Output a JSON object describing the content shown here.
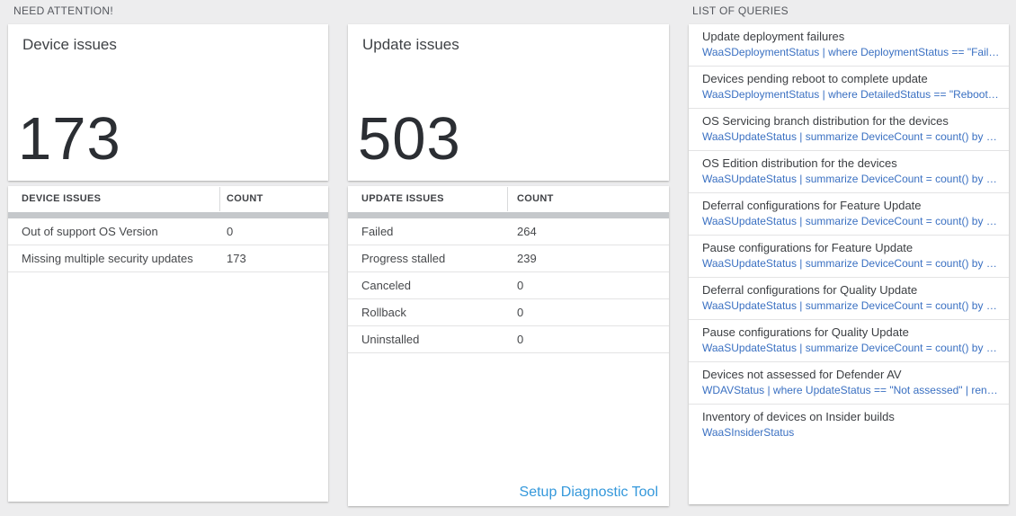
{
  "page": {
    "section_need_attention": "NEED ATTENTION!",
    "section_list_of_queries": "LIST OF QUERIES"
  },
  "device_issues": {
    "card_title": "Device issues",
    "total": "173",
    "table": {
      "col_issue": "DEVICE ISSUES",
      "col_count": "COUNT",
      "rows": [
        {
          "label": "Out of support OS Version",
          "count": "0"
        },
        {
          "label": "Missing multiple security updates",
          "count": "173"
        }
      ]
    }
  },
  "update_issues": {
    "card_title": "Update issues",
    "total": "503",
    "table": {
      "col_issue": "UPDATE ISSUES",
      "col_count": "COUNT",
      "rows": [
        {
          "label": "Failed",
          "count": "264"
        },
        {
          "label": "Progress stalled",
          "count": "239"
        },
        {
          "label": "Canceled",
          "count": "0"
        },
        {
          "label": "Rollback",
          "count": "0"
        },
        {
          "label": "Uninstalled",
          "count": "0"
        }
      ]
    },
    "setup_link": "Setup Diagnostic Tool"
  },
  "queries": {
    "items": [
      {
        "title": "Update deployment failures",
        "query": "WaaSDeploymentStatus | where DeploymentStatus == \"Failed\" |..."
      },
      {
        "title": "Devices pending reboot to complete update",
        "query": "WaaSDeploymentStatus | where DetailedStatus == \"Reboot pend..."
      },
      {
        "title": "OS Servicing branch distribution for the devices",
        "query": "WaaSUpdateStatus | summarize DeviceCount = count() by OSSer..."
      },
      {
        "title": "OS Edition distribution for the devices",
        "query": "WaaSUpdateStatus | summarize DeviceCount = count() by OSEdit..."
      },
      {
        "title": "Deferral configurations for Feature Update",
        "query": "WaaSUpdateStatus | summarize DeviceCount = count() by Featur..."
      },
      {
        "title": "Pause configurations for Feature Update",
        "query": "WaaSUpdateStatus | summarize DeviceCount = count() by Featur..."
      },
      {
        "title": "Deferral configurations for Quality Update",
        "query": "WaaSUpdateStatus | summarize DeviceCount = count() by Qualit..."
      },
      {
        "title": "Pause configurations for Quality Update",
        "query": "WaaSUpdateStatus | summarize DeviceCount = count() by Qualit..."
      },
      {
        "title": "Devices not assessed for Defender AV",
        "query": "WDAVStatus | where UpdateStatus == \"Not assessed\" | render ta..."
      },
      {
        "title": "Inventory of devices on Insider builds",
        "query": "WaaSInsiderStatus"
      }
    ]
  },
  "colors": {
    "page_background": "#ededee",
    "card_background": "#ffffff",
    "section_header_text": "#55585e",
    "big_number_text": "#2b2e33",
    "query_link_blue": "#3a70c2",
    "setup_link_blue": "#3498db",
    "scrollbar_gray": "#c5c8cb"
  }
}
